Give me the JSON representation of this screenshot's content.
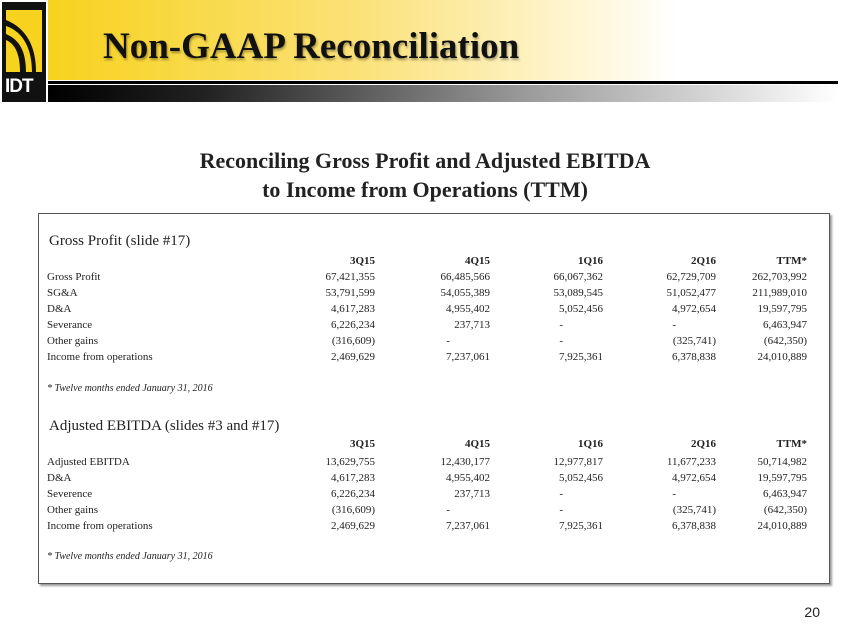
{
  "logo": {
    "text": "IDT"
  },
  "header": {
    "title": "Non-GAAP Reconciliation"
  },
  "subtitle": {
    "line1": "Reconciling Gross Profit and Adjusted EBITDA",
    "line2": "to Income from Operations (TTM)"
  },
  "columns": [
    "3Q15",
    "4Q15",
    "1Q16",
    "2Q16",
    "TTM*"
  ],
  "sections": [
    {
      "title": "Gross Profit (slide #17)",
      "rows": [
        {
          "label": "Gross Profit",
          "values": [
            "67,421,355",
            "66,485,566",
            "66,067,362",
            "62,729,709",
            "262,703,992"
          ]
        },
        {
          "label": "SG&A",
          "values": [
            "53,791,599",
            "54,055,389",
            "53,089,545",
            "51,052,477",
            "211,989,010"
          ]
        },
        {
          "label": "D&A",
          "values": [
            "4,617,283",
            "4,955,402",
            "5,052,456",
            "4,972,654",
            "19,597,795"
          ]
        },
        {
          "label": "Severance",
          "values": [
            "6,226,234",
            "237,713",
            "-",
            "-",
            "6,463,947"
          ]
        },
        {
          "label": "Other gains",
          "values": [
            "(316,609)",
            "-",
            "-",
            "(325,741)",
            "(642,350)"
          ]
        },
        {
          "label": "Income from operations",
          "values": [
            "2,469,629",
            "7,237,061",
            "7,925,361",
            "6,378,838",
            "24,010,889"
          ]
        }
      ],
      "footnote": "* Twelve months ended January 31, 2016"
    },
    {
      "title": "Adjusted EBITDA (slides #3 and #17)",
      "rows": [
        {
          "label": "Adjusted EBITDA",
          "values": [
            "13,629,755",
            "12,430,177",
            "12,977,817",
            "11,677,233",
            "50,714,982"
          ]
        },
        {
          "label": "D&A",
          "values": [
            "4,617,283",
            "4,955,402",
            "5,052,456",
            "4,972,654",
            "19,597,795"
          ]
        },
        {
          "label": "Severence",
          "values": [
            "6,226,234",
            "237,713",
            "-",
            "-",
            "6,463,947"
          ]
        },
        {
          "label": "Other gains",
          "values": [
            "(316,609)",
            "-",
            "-",
            "(325,741)",
            "(642,350)"
          ]
        },
        {
          "label": "Income from operations",
          "values": [
            "2,469,629",
            "7,237,061",
            "7,925,361",
            "6,378,838",
            "24,010,889"
          ]
        }
      ],
      "footnote": "* Twelve months ended January 31, 2016"
    }
  ],
  "page_number": "20"
}
